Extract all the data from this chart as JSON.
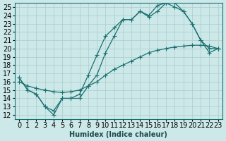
{
  "xlabel": "Humidex (Indice chaleur)",
  "ylabel": "",
  "xlim": [
    -0.5,
    23.5
  ],
  "ylim": [
    11.5,
    25.5
  ],
  "xticks": [
    0,
    1,
    2,
    3,
    4,
    5,
    6,
    7,
    8,
    9,
    10,
    11,
    12,
    13,
    14,
    15,
    16,
    17,
    18,
    19,
    20,
    21,
    22,
    23
  ],
  "yticks": [
    12,
    13,
    14,
    15,
    16,
    17,
    18,
    19,
    20,
    21,
    22,
    23,
    24,
    25
  ],
  "bg_color": "#cce8e8",
  "grid_color": "#aacccc",
  "line_color": "#1a7070",
  "line1_x": [
    0,
    1,
    2,
    3,
    4,
    5,
    6,
    7,
    8,
    9,
    10,
    11,
    12,
    13,
    14,
    15,
    16,
    17,
    18,
    19,
    20,
    21,
    22,
    23
  ],
  "line1_y": [
    16.5,
    15.0,
    14.5,
    13.0,
    12.0,
    14.0,
    14.0,
    14.0,
    15.5,
    16.8,
    19.5,
    21.5,
    23.5,
    23.5,
    24.5,
    24.0,
    25.2,
    25.5,
    25.0,
    24.5,
    23.0,
    21.0,
    19.5,
    20.0
  ],
  "line2_x": [
    0,
    1,
    2,
    3,
    4,
    5,
    6,
    7,
    8,
    9,
    10,
    11,
    12,
    13,
    14,
    15,
    16,
    17,
    18,
    19,
    20,
    21,
    22,
    23
  ],
  "line2_y": [
    16.5,
    15.0,
    14.5,
    13.0,
    12.5,
    14.0,
    14.0,
    14.5,
    16.8,
    19.2,
    21.5,
    22.5,
    23.5,
    23.5,
    24.5,
    23.8,
    24.5,
    25.5,
    25.5,
    24.5,
    23.0,
    21.0,
    20.0,
    20.0
  ],
  "line3_x": [
    0,
    1,
    2,
    3,
    4,
    5,
    6,
    7,
    8,
    9,
    10,
    11,
    12,
    13,
    14,
    15,
    16,
    17,
    18,
    19,
    20,
    21,
    22,
    23
  ],
  "line3_y": [
    16.0,
    15.5,
    15.2,
    15.0,
    14.8,
    14.7,
    14.8,
    15.0,
    15.5,
    16.0,
    16.8,
    17.5,
    18.0,
    18.5,
    19.0,
    19.5,
    19.8,
    20.0,
    20.2,
    20.3,
    20.4,
    20.4,
    20.3,
    20.0
  ],
  "marker": "+",
  "markersize": 4,
  "linewidth": 0.9,
  "font_size": 7,
  "title_font_size": 7
}
